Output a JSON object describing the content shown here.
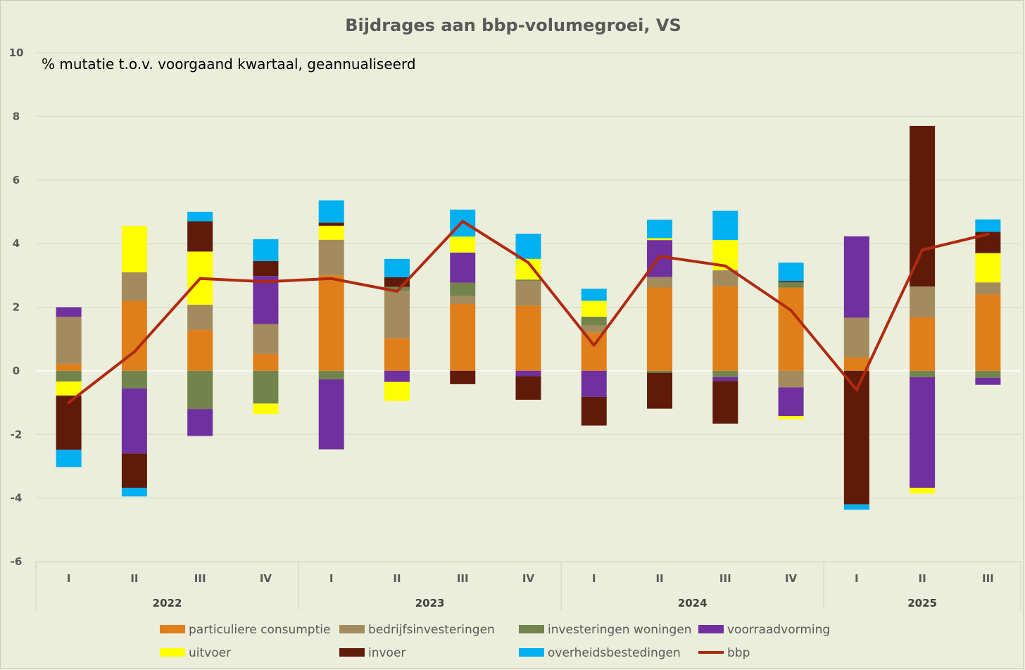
{
  "chart_data": {
    "type": "bar",
    "stacked": true,
    "title": "Bijdrages aan bbp-volumegroei, VS",
    "subtitle": "% mutatie t.o.v. voorgaand kwartaal, geannualiseerd",
    "ylim": [
      -6,
      10
    ],
    "yticks": [
      -6,
      -4,
      -2,
      0,
      2,
      4,
      6,
      8,
      10
    ],
    "grid": true,
    "legend_position": "bottom",
    "categories": [
      "I",
      "II",
      "III",
      "IV",
      "I",
      "II",
      "III",
      "IV",
      "I",
      "II",
      "III",
      "IV",
      "I",
      "II",
      "III"
    ],
    "groups": [
      {
        "label": "2022",
        "size": 4
      },
      {
        "label": "2023",
        "size": 4
      },
      {
        "label": "2024",
        "size": 4
      },
      {
        "label": "2025",
        "size": 3
      }
    ],
    "series": [
      {
        "name": "particuliere consumptie",
        "color": "#e07f1a",
        "values": [
          0.22,
          2.2,
          1.28,
          0.53,
          3.0,
          1.02,
          2.1,
          2.05,
          1.2,
          2.62,
          2.66,
          2.62,
          0.42,
          1.68,
          2.4
        ]
      },
      {
        "name": "bedrijfsinvesteringen",
        "color": "#a48b5e",
        "values": [
          1.48,
          0.9,
          0.8,
          0.94,
          1.12,
          1.5,
          0.25,
          0.78,
          0.22,
          0.33,
          0.5,
          -0.52,
          1.25,
          0.97,
          0.38
        ]
      },
      {
        "name": "investeringen woningen",
        "color": "#72844b",
        "values": [
          -0.34,
          -0.55,
          -1.2,
          -1.03,
          -0.27,
          0.12,
          0.42,
          0.04,
          0.28,
          -0.06,
          -0.2,
          0.16,
          0.0,
          -0.2,
          -0.22
        ]
      },
      {
        "name": "voorraadvorming",
        "color": "#7030a0",
        "values": [
          0.3,
          -2.05,
          -0.85,
          1.51,
          -2.2,
          -0.35,
          0.95,
          -0.17,
          -0.82,
          1.16,
          -0.12,
          -0.9,
          2.56,
          -3.48,
          -0.22
        ]
      },
      {
        "name": "uitvoer",
        "color": "#ffff00",
        "values": [
          -0.44,
          1.46,
          1.67,
          -0.33,
          0.44,
          -0.6,
          0.5,
          0.65,
          0.5,
          0.06,
          0.95,
          -0.1,
          0.0,
          -0.18,
          0.92
        ]
      },
      {
        "name": "invoer",
        "color": "#601a0a",
        "values": [
          -1.7,
          -1.08,
          0.95,
          0.47,
          0.1,
          0.3,
          -0.42,
          -0.74,
          -0.9,
          -1.13,
          -1.34,
          0.04,
          -4.2,
          5.05,
          0.67
        ]
      },
      {
        "name": "overheidsbestedingen",
        "color": "#00b0f0",
        "values": [
          -0.55,
          -0.27,
          0.3,
          0.69,
          0.7,
          0.58,
          0.85,
          0.79,
          0.38,
          0.58,
          0.92,
          0.58,
          -0.17,
          0.0,
          0.39
        ]
      }
    ],
    "line": {
      "name": "bbp",
      "color": "#b02a10",
      "values": [
        -1.0,
        0.6,
        2.9,
        2.8,
        2.9,
        2.5,
        4.7,
        3.4,
        0.8,
        3.6,
        3.3,
        1.9,
        -0.6,
        3.8,
        4.3
      ]
    }
  }
}
